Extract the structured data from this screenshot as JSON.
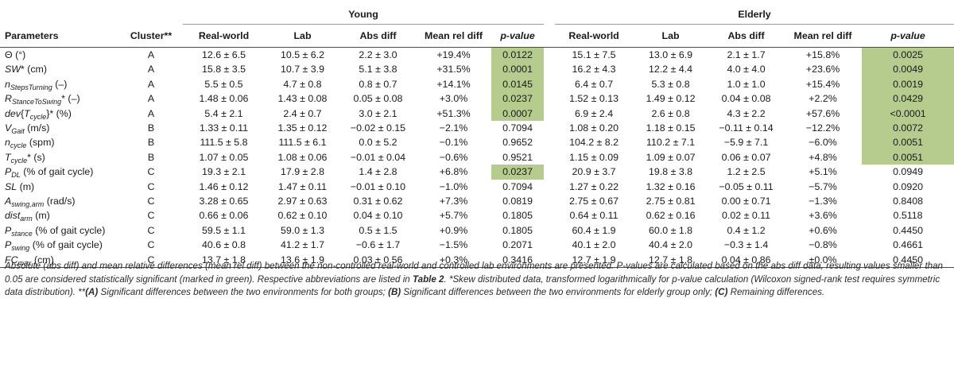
{
  "groups": {
    "young": "Young",
    "elderly": "Elderly"
  },
  "headers": {
    "parameters": "Parameters",
    "cluster": "Cluster**",
    "real_world": "Real-world",
    "lab": "Lab",
    "abs_diff": "Abs diff",
    "mean_rel_diff": "Mean rel diff",
    "p_value": "p-value"
  },
  "significance_color": "#b5cc8e",
  "rows": [
    {
      "param_html": "Θ (°)",
      "cluster": "A",
      "young": {
        "rw": "12.6 ± 6.5",
        "lab": "10.5 ± 6.2",
        "abs": "2.2 ± 3.0",
        "rel": "+19.4%",
        "p": "0.0122",
        "sig": true
      },
      "elderly": {
        "rw": "15.1 ± 7.5",
        "lab": "13.0 ± 6.9",
        "abs": "2.1 ± 1.7",
        "rel": "+15.8%",
        "p": "0.0025",
        "sig": true
      }
    },
    {
      "param_html": "<i>SW</i>* (cm)",
      "cluster": "A",
      "young": {
        "rw": "15.8 ± 3.5",
        "lab": "10.7 ± 3.9",
        "abs": "5.1 ± 3.8",
        "rel": "+31.5%",
        "p": "0.0001",
        "sig": true
      },
      "elderly": {
        "rw": "16.2 ± 4.3",
        "lab": "12.2 ± 4.4",
        "abs": "4.0 ± 4.0",
        "rel": "+23.6%",
        "p": "0.0049",
        "sig": true
      }
    },
    {
      "param_html": "<i>n<sub>StepsTurning</sub></i> (–)",
      "cluster": "A",
      "young": {
        "rw": "5.5 ± 0.5",
        "lab": "4.7 ± 0.8",
        "abs": "0.8 ± 0.7",
        "rel": "+14.1%",
        "p": "0.0145",
        "sig": true
      },
      "elderly": {
        "rw": "6.4 ± 0.7",
        "lab": "5.3 ± 0.8",
        "abs": "1.0 ± 1.0",
        "rel": "+15.4%",
        "p": "0.0019",
        "sig": true
      }
    },
    {
      "param_html": "<i>R<sub>StanceToSwing</sub></i>* (–)",
      "cluster": "A",
      "young": {
        "rw": "1.48 ± 0.06",
        "lab": "1.43 ± 0.08",
        "abs": "0.05 ± 0.08",
        "rel": "+3.0%",
        "p": "0.0237",
        "sig": true
      },
      "elderly": {
        "rw": "1.52 ± 0.13",
        "lab": "1.49 ± 0.12",
        "abs": "0.04 ± 0.08",
        "rel": "+2.2%",
        "p": "0.0429",
        "sig": true
      }
    },
    {
      "param_html": "<i>dev</i>{<i>T<sub>cycle</sub></i>}* (%)",
      "cluster": "A",
      "young": {
        "rw": "5.4 ± 2.1",
        "lab": "2.4 ± 0.7",
        "abs": "3.0 ± 2.1",
        "rel": "+51.3%",
        "p": "0.0007",
        "sig": true
      },
      "elderly": {
        "rw": "6.9 ± 2.4",
        "lab": "2.6 ± 0.8",
        "abs": "4.3 ± 2.2",
        "rel": "+57.6%",
        "p": "<0.0001",
        "sig": true
      }
    },
    {
      "param_html": "<i>V<sub>Gait</sub></i> (m/s)",
      "cluster": "B",
      "young": {
        "rw": "1.33 ± 0.11",
        "lab": "1.35 ± 0.12",
        "abs": "−0.02 ± 0.15",
        "rel": "−2.1%",
        "p": "0.7094",
        "sig": false
      },
      "elderly": {
        "rw": "1.08 ± 0.20",
        "lab": "1.18 ± 0.15",
        "abs": "−0.11 ± 0.14",
        "rel": "−12.2%",
        "p": "0.0072",
        "sig": true
      }
    },
    {
      "param_html": "<i>n<sub>cycle</sub></i> (spm)",
      "cluster": "B",
      "young": {
        "rw": "111.5 ± 5.8",
        "lab": "111.5 ± 6.1",
        "abs": "0.0 ± 5.2",
        "rel": "−0.1%",
        "p": "0.9652",
        "sig": false
      },
      "elderly": {
        "rw": "104.2 ± 8.2",
        "lab": "110.2 ± 7.1",
        "abs": "−5.9 ± 7.1",
        "rel": "−6.0%",
        "p": "0.0051",
        "sig": true
      }
    },
    {
      "param_html": "<i>T<sub>cycle</sub></i>* (s)",
      "cluster": "B",
      "young": {
        "rw": "1.07 ± 0.05",
        "lab": "1.08 ± 0.06",
        "abs": "−0.01 ± 0.04",
        "rel": "−0.6%",
        "p": "0.9521",
        "sig": false
      },
      "elderly": {
        "rw": "1.15 ± 0.09",
        "lab": "1.09 ± 0.07",
        "abs": "0.06 ± 0.07",
        "rel": "+4.8%",
        "p": "0.0051",
        "sig": true
      }
    },
    {
      "param_html": "<i>P<sub>DL</sub></i> (% of gait cycle)",
      "cluster": "C",
      "young": {
        "rw": "19.3 ± 2.1",
        "lab": "17.9 ± 2.8",
        "abs": "1.4 ± 2.8",
        "rel": "+6.8%",
        "p": "0.0237",
        "sig": true
      },
      "elderly": {
        "rw": "20.9 ± 3.7",
        "lab": "19.8 ± 3.8",
        "abs": "1.2 ± 2.5",
        "rel": "+5.1%",
        "p": "0.0949",
        "sig": false
      }
    },
    {
      "param_html": "<i>SL</i> (m)",
      "cluster": "C",
      "young": {
        "rw": "1.46 ± 0.12",
        "lab": "1.47 ± 0.11",
        "abs": "−0.01 ± 0.10",
        "rel": "−1.0%",
        "p": "0.7094",
        "sig": false
      },
      "elderly": {
        "rw": "1.27 ± 0.22",
        "lab": "1.32 ± 0.16",
        "abs": "−0.05 ± 0.11",
        "rel": "−5.7%",
        "p": "0.0920",
        "sig": false
      }
    },
    {
      "param_html": "<i>A<sub>swing,arm</sub></i> (rad/s)",
      "cluster": "C",
      "young": {
        "rw": "3.28 ± 0.65",
        "lab": "2.97 ± 0.63",
        "abs": "0.31 ± 0.62",
        "rel": "+7.3%",
        "p": "0.0819",
        "sig": false
      },
      "elderly": {
        "rw": "2.75 ± 0.67",
        "lab": "2.75 ± 0.81",
        "abs": "0.00 ± 0.71",
        "rel": "−1.3%",
        "p": "0.8408",
        "sig": false
      }
    },
    {
      "param_html": "<i>dist<sub>arm</sub></i> (m)",
      "cluster": "C",
      "young": {
        "rw": "0.66 ± 0.06",
        "lab": "0.62 ± 0.10",
        "abs": "0.04 ± 0.10",
        "rel": "+5.7%",
        "p": "0.1805",
        "sig": false
      },
      "elderly": {
        "rw": "0.64 ± 0.11",
        "lab": "0.62 ± 0.16",
        "abs": "0.02 ± 0.11",
        "rel": "+3.6%",
        "p": "0.5118",
        "sig": false
      }
    },
    {
      "param_html": "<i>P<sub>stance</sub></i> (% of gait cycle)",
      "cluster": "C",
      "young": {
        "rw": "59.5 ± 1.1",
        "lab": "59.0 ± 1.3",
        "abs": "0.5 ± 1.5",
        "rel": "+0.9%",
        "p": "0.1805",
        "sig": false
      },
      "elderly": {
        "rw": "60.4 ± 1.9",
        "lab": "60.0 ± 1.8",
        "abs": "0.4 ± 1.2",
        "rel": "+0.6%",
        "p": "0.4450",
        "sig": false
      }
    },
    {
      "param_html": "<i>P<sub>swing</sub></i> (% of gait cycle)",
      "cluster": "C",
      "young": {
        "rw": "40.6 ± 0.8",
        "lab": "41.2 ± 1.7",
        "abs": "−0.6 ± 1.7",
        "rel": "−1.5%",
        "p": "0.2071",
        "sig": false
      },
      "elderly": {
        "rw": "40.1 ± 2.0",
        "lab": "40.4 ± 2.0",
        "abs": "−0.3 ± 1.4",
        "rel": "−0.8%",
        "p": "0.4661",
        "sig": false
      }
    },
    {
      "param_html": "<i>FC<sub>max</sub></i> (cm)",
      "cluster": "C",
      "young": {
        "rw": "13.7 ± 1.8",
        "lab": "13.6 ± 1.9",
        "abs": "0.03 ± 0.56",
        "rel": "+0.3%",
        "p": "0.3416",
        "sig": false
      },
      "elderly": {
        "rw": "12.7 ± 1.9",
        "lab": "12.7 ± 1.8",
        "abs": "0.04 ± 0.86",
        "rel": "±0.0%",
        "p": "0.4450",
        "sig": false
      }
    }
  ],
  "footnote_html": "Absolute (abs diff) and mean relative differences (mean rel diff) between the non-controlled real-world and controlled lab environments are presented. P-values are calculated based on the abs diff data, resulting values smaller than 0.05 are considered statistically significant (marked in green). Respective abbreviations are listed in <b>Table 2</b>. *Skew distributed data, transformed logarithmically for p-value calculation (Wilcoxon signed-rank test requires symmetric data distribution). **<b>(A)</b> Significant differences between the two environments for both groups; <b>(B)</b> Significant differences between the two environments for elderly group only; <b>(C)</b> Remaining differences."
}
